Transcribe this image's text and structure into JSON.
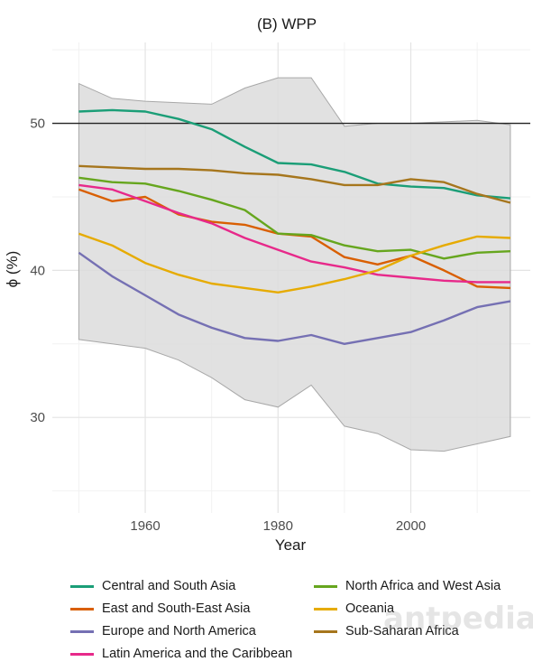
{
  "chart_data": {
    "type": "line",
    "title": "(B) WPP",
    "xlabel": "Year",
    "ylabel": "ϕ (%)",
    "xlim": [
      1946,
      2018
    ],
    "ylim": [
      23.5,
      55.5
    ],
    "xticks": [
      1960,
      1980,
      2000
    ],
    "yticks": [
      30,
      40,
      50
    ],
    "grid": true,
    "legend_position": "bottom",
    "reference_line": 50,
    "x": [
      1950,
      1955,
      1960,
      1965,
      1970,
      1975,
      1980,
      1985,
      1990,
      1995,
      2000,
      2005,
      2010,
      2015
    ],
    "band": {
      "upper": [
        52.7,
        51.7,
        51.5,
        51.4,
        51.3,
        52.4,
        53.1,
        53.1,
        49.8,
        50.0,
        50.0,
        50.1,
        50.2,
        49.9
      ],
      "lower": [
        35.3,
        35.0,
        34.7,
        33.9,
        32.7,
        31.2,
        30.7,
        32.2,
        29.4,
        28.9,
        27.8,
        27.7,
        28.2,
        28.7
      ],
      "color": "#dcdcdc"
    },
    "series": [
      {
        "name": "Central and South Asia",
        "color": "#1b9e77",
        "values": [
          50.8,
          50.9,
          50.8,
          50.3,
          49.6,
          48.4,
          47.3,
          47.2,
          46.7,
          45.9,
          45.7,
          45.6,
          45.1,
          44.9
        ]
      },
      {
        "name": "East and South-East Asia",
        "color": "#d95f02",
        "values": [
          45.5,
          44.7,
          45.0,
          43.8,
          43.3,
          43.1,
          42.5,
          42.3,
          40.9,
          40.4,
          41.0,
          40.0,
          38.9,
          38.8
        ]
      },
      {
        "name": "Europe and North America",
        "color": "#7570b3",
        "values": [
          41.2,
          39.6,
          38.3,
          37.0,
          36.1,
          35.4,
          35.2,
          35.6,
          35.0,
          35.4,
          35.8,
          36.6,
          37.5,
          37.9
        ]
      },
      {
        "name": "Latin America and the Caribbean",
        "color": "#e7298a",
        "values": [
          45.8,
          45.5,
          44.7,
          43.9,
          43.2,
          42.2,
          41.4,
          40.6,
          40.2,
          39.7,
          39.5,
          39.3,
          39.2,
          39.2
        ]
      },
      {
        "name": "North Africa and West Asia",
        "color": "#66a61e",
        "values": [
          46.3,
          46.0,
          45.9,
          45.4,
          44.8,
          44.1,
          42.5,
          42.4,
          41.7,
          41.3,
          41.4,
          40.8,
          41.2,
          41.3
        ]
      },
      {
        "name": "Oceania",
        "color": "#e6ab02",
        "values": [
          42.5,
          41.7,
          40.5,
          39.7,
          39.1,
          38.8,
          38.5,
          38.9,
          39.4,
          40.0,
          41.0,
          41.7,
          42.3,
          42.2
        ]
      },
      {
        "name": "Sub-Saharan Africa",
        "color": "#a6761d",
        "values": [
          47.1,
          47.0,
          46.9,
          46.9,
          46.8,
          46.6,
          46.5,
          46.2,
          45.8,
          45.8,
          46.2,
          46.0,
          45.2,
          44.6
        ]
      }
    ]
  },
  "watermark": "antpedia"
}
